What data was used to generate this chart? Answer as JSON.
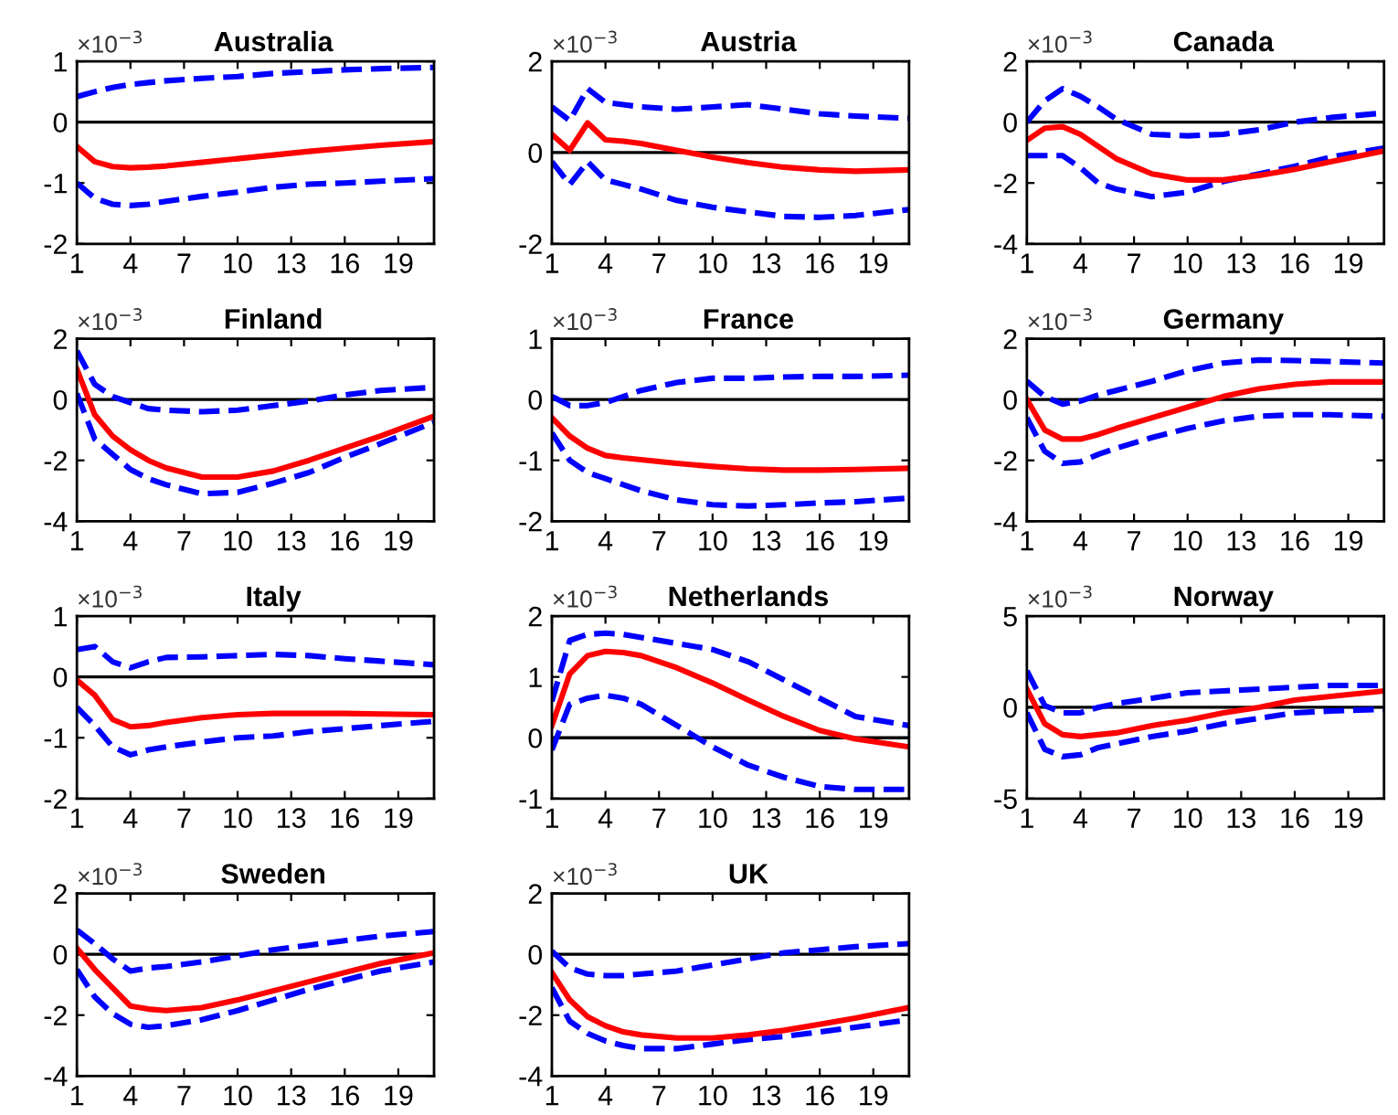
{
  "chart_data": [
    {
      "type": "line",
      "title": "Australia",
      "annotations": [
        "×10$^{−3}$"
      ],
      "x": [
        1,
        2,
        3,
        4,
        5,
        6,
        8,
        10,
        12,
        14,
        16,
        18,
        21
      ],
      "xlim": [
        1,
        21
      ],
      "xticks": [
        1,
        4,
        7,
        10,
        13,
        16,
        19
      ],
      "ylim": [
        -2,
        1
      ],
      "yticks": [
        -2,
        -1,
        0,
        1
      ],
      "ref_lines": [
        {
          "axis": "y",
          "value": 0,
          "color": "#000000"
        }
      ],
      "series": [
        {
          "color": "#0000ff",
          "line_style": "dashed",
          "values": [
            0.42,
            0.5,
            0.57,
            0.62,
            0.65,
            0.68,
            0.72,
            0.75,
            0.8,
            0.83,
            0.86,
            0.88,
            0.9
          ]
        },
        {
          "color": "#0000ff",
          "line_style": "dashed",
          "values": [
            -1.0,
            -1.25,
            -1.35,
            -1.37,
            -1.35,
            -1.3,
            -1.22,
            -1.15,
            -1.07,
            -1.02,
            -1.0,
            -0.97,
            -0.93
          ]
        },
        {
          "color": "#ff0000",
          "line_style": "solid",
          "values": [
            -0.4,
            -0.65,
            -0.73,
            -0.75,
            -0.74,
            -0.72,
            -0.66,
            -0.6,
            -0.54,
            -0.48,
            -0.43,
            -0.38,
            -0.32
          ]
        }
      ]
    },
    {
      "type": "line",
      "title": "Austria",
      "annotations": [
        "×10$^{−3}$"
      ],
      "x": [
        1,
        2,
        3,
        4,
        5,
        6,
        8,
        10,
        12,
        14,
        16,
        18,
        21
      ],
      "xlim": [
        1,
        21
      ],
      "xticks": [
        1,
        4,
        7,
        10,
        13,
        16,
        19
      ],
      "ylim": [
        -2,
        2
      ],
      "yticks": [
        -2,
        0,
        2
      ],
      "ref_lines": [
        {
          "axis": "y",
          "value": 0,
          "color": "#000000"
        }
      ],
      "series": [
        {
          "color": "#0000ff",
          "line_style": "dashed",
          "values": [
            1.0,
            0.7,
            1.4,
            1.1,
            1.05,
            1.0,
            0.95,
            1.0,
            1.05,
            0.95,
            0.85,
            0.8,
            0.75
          ]
        },
        {
          "color": "#0000ff",
          "line_style": "dashed",
          "values": [
            -0.2,
            -0.7,
            -0.2,
            -0.6,
            -0.7,
            -0.8,
            -1.05,
            -1.2,
            -1.3,
            -1.4,
            -1.42,
            -1.38,
            -1.25
          ]
        },
        {
          "color": "#ff0000",
          "line_style": "solid",
          "values": [
            0.4,
            0.05,
            0.65,
            0.28,
            0.25,
            0.2,
            0.05,
            -0.1,
            -0.22,
            -0.32,
            -0.38,
            -0.41,
            -0.38
          ]
        }
      ]
    },
    {
      "type": "line",
      "title": "Canada",
      "annotations": [
        "×10$^{−3}$"
      ],
      "x": [
        1,
        2,
        3,
        4,
        5,
        6,
        8,
        10,
        12,
        14,
        16,
        18,
        21
      ],
      "xlim": [
        1,
        21
      ],
      "xticks": [
        1,
        4,
        7,
        10,
        13,
        16,
        19
      ],
      "ylim": [
        -4,
        2
      ],
      "yticks": [
        -4,
        -2,
        0,
        2
      ],
      "ref_lines": [
        {
          "axis": "y",
          "value": 0,
          "color": "#000000"
        }
      ],
      "series": [
        {
          "color": "#0000ff",
          "line_style": "dashed",
          "values": [
            0.0,
            0.7,
            1.1,
            0.85,
            0.5,
            0.1,
            -0.4,
            -0.45,
            -0.4,
            -0.25,
            0.0,
            0.15,
            0.3
          ]
        },
        {
          "color": "#0000ff",
          "line_style": "dashed",
          "values": [
            -1.1,
            -1.1,
            -1.1,
            -1.5,
            -2.0,
            -2.2,
            -2.45,
            -2.3,
            -1.95,
            -1.7,
            -1.45,
            -1.15,
            -0.85
          ]
        },
        {
          "color": "#ff0000",
          "line_style": "solid",
          "values": [
            -0.6,
            -0.2,
            -0.15,
            -0.4,
            -0.8,
            -1.2,
            -1.7,
            -1.9,
            -1.9,
            -1.75,
            -1.55,
            -1.3,
            -0.95
          ]
        }
      ]
    },
    {
      "type": "line",
      "title": "Finland",
      "annotations": [
        "×10$^{−3}$"
      ],
      "x": [
        1,
        2,
        3,
        4,
        5,
        6,
        8,
        10,
        12,
        14,
        16,
        18,
        21
      ],
      "xlim": [
        1,
        21
      ],
      "xticks": [
        1,
        4,
        7,
        10,
        13,
        16,
        19
      ],
      "ylim": [
        -4,
        2
      ],
      "yticks": [
        -4,
        -2,
        0,
        2
      ],
      "ref_lines": [
        {
          "axis": "y",
          "value": 0,
          "color": "#000000"
        }
      ],
      "series": [
        {
          "color": "#0000ff",
          "line_style": "dashed",
          "values": [
            1.6,
            0.5,
            0.1,
            -0.1,
            -0.3,
            -0.35,
            -0.4,
            -0.35,
            -0.2,
            -0.05,
            0.15,
            0.3,
            0.4
          ]
        },
        {
          "color": "#0000ff",
          "line_style": "dashed",
          "values": [
            0.2,
            -1.3,
            -1.8,
            -2.3,
            -2.6,
            -2.8,
            -3.1,
            -3.05,
            -2.75,
            -2.4,
            -1.9,
            -1.45,
            -0.75
          ]
        },
        {
          "color": "#ff0000",
          "line_style": "solid",
          "values": [
            1.0,
            -0.5,
            -1.2,
            -1.65,
            -2.0,
            -2.25,
            -2.55,
            -2.55,
            -2.35,
            -2.0,
            -1.6,
            -1.2,
            -0.55
          ]
        }
      ]
    },
    {
      "type": "line",
      "title": "France",
      "annotations": [
        "×10$^{−3}$"
      ],
      "x": [
        1,
        2,
        3,
        4,
        5,
        6,
        8,
        10,
        12,
        14,
        16,
        18,
        21
      ],
      "xlim": [
        1,
        21
      ],
      "xticks": [
        1,
        4,
        7,
        10,
        13,
        16,
        19
      ],
      "ylim": [
        -2,
        1
      ],
      "yticks": [
        -2,
        -1,
        0,
        1
      ],
      "ref_lines": [
        {
          "axis": "y",
          "value": 0,
          "color": "#000000"
        }
      ],
      "series": [
        {
          "color": "#0000ff",
          "line_style": "dashed",
          "values": [
            0.05,
            -0.1,
            -0.1,
            -0.05,
            0.05,
            0.15,
            0.28,
            0.35,
            0.35,
            0.37,
            0.38,
            0.38,
            0.4
          ]
        },
        {
          "color": "#0000ff",
          "line_style": "dashed",
          "values": [
            -0.55,
            -1.0,
            -1.2,
            -1.3,
            -1.4,
            -1.5,
            -1.65,
            -1.73,
            -1.75,
            -1.73,
            -1.7,
            -1.68,
            -1.62
          ]
        },
        {
          "color": "#ff0000",
          "line_style": "solid",
          "values": [
            -0.3,
            -0.6,
            -0.8,
            -0.92,
            -0.96,
            -0.99,
            -1.05,
            -1.1,
            -1.14,
            -1.16,
            -1.16,
            -1.15,
            -1.13
          ]
        }
      ]
    },
    {
      "type": "line",
      "title": "Germany",
      "annotations": [
        "×10$^{−3}$"
      ],
      "x": [
        1,
        2,
        3,
        4,
        5,
        6,
        8,
        10,
        12,
        14,
        16,
        18,
        21
      ],
      "xlim": [
        1,
        21
      ],
      "xticks": [
        1,
        4,
        7,
        10,
        13,
        16,
        19
      ],
      "ylim": [
        -4,
        2
      ],
      "yticks": [
        -4,
        -2,
        0,
        2
      ],
      "ref_lines": [
        {
          "axis": "y",
          "value": 0,
          "color": "#000000"
        }
      ],
      "series": [
        {
          "color": "#0000ff",
          "line_style": "dashed",
          "values": [
            0.6,
            0.1,
            -0.15,
            -0.05,
            0.15,
            0.3,
            0.6,
            0.95,
            1.2,
            1.3,
            1.28,
            1.25,
            1.2
          ]
        },
        {
          "color": "#0000ff",
          "line_style": "dashed",
          "values": [
            -0.6,
            -1.7,
            -2.1,
            -2.05,
            -1.8,
            -1.6,
            -1.25,
            -0.95,
            -0.7,
            -0.55,
            -0.5,
            -0.5,
            -0.55
          ]
        },
        {
          "color": "#ff0000",
          "line_style": "solid",
          "values": [
            0.0,
            -1.0,
            -1.3,
            -1.3,
            -1.15,
            -0.95,
            -0.6,
            -0.25,
            0.1,
            0.35,
            0.5,
            0.58,
            0.58
          ]
        }
      ]
    },
    {
      "type": "line",
      "title": "Italy",
      "annotations": [
        "×10$^{−3}$"
      ],
      "x": [
        1,
        2,
        3,
        4,
        5,
        6,
        8,
        10,
        12,
        14,
        16,
        18,
        21
      ],
      "xlim": [
        1,
        21
      ],
      "xticks": [
        1,
        4,
        7,
        10,
        13,
        16,
        19
      ],
      "ylim": [
        -2,
        1
      ],
      "yticks": [
        -2,
        -1,
        0,
        1
      ],
      "ref_lines": [
        {
          "axis": "y",
          "value": 0,
          "color": "#000000"
        }
      ],
      "series": [
        {
          "color": "#0000ff",
          "line_style": "dashed",
          "values": [
            0.45,
            0.5,
            0.25,
            0.15,
            0.25,
            0.32,
            0.33,
            0.35,
            0.37,
            0.35,
            0.3,
            0.26,
            0.2
          ]
        },
        {
          "color": "#0000ff",
          "line_style": "dashed",
          "values": [
            -0.5,
            -0.8,
            -1.15,
            -1.28,
            -1.2,
            -1.15,
            -1.07,
            -1.0,
            -0.97,
            -0.9,
            -0.85,
            -0.8,
            -0.73
          ]
        },
        {
          "color": "#ff0000",
          "line_style": "solid",
          "values": [
            -0.05,
            -0.3,
            -0.7,
            -0.82,
            -0.8,
            -0.75,
            -0.67,
            -0.62,
            -0.6,
            -0.6,
            -0.6,
            -0.61,
            -0.62
          ]
        }
      ]
    },
    {
      "type": "line",
      "title": "Netherlands",
      "annotations": [
        "×10$^{−3}$"
      ],
      "x": [
        1,
        2,
        3,
        4,
        5,
        6,
        8,
        10,
        12,
        14,
        16,
        18,
        21
      ],
      "xlim": [
        1,
        21
      ],
      "xticks": [
        1,
        4,
        7,
        10,
        13,
        16,
        19
      ],
      "ylim": [
        -1,
        2
      ],
      "yticks": [
        -1,
        0,
        1,
        2
      ],
      "ref_lines": [
        {
          "axis": "y",
          "value": 0,
          "color": "#000000"
        }
      ],
      "series": [
        {
          "color": "#0000ff",
          "line_style": "dashed",
          "values": [
            0.6,
            1.6,
            1.7,
            1.72,
            1.7,
            1.65,
            1.55,
            1.45,
            1.25,
            0.95,
            0.65,
            0.35,
            0.2
          ]
        },
        {
          "color": "#0000ff",
          "line_style": "dashed",
          "values": [
            -0.2,
            0.55,
            0.65,
            0.7,
            0.65,
            0.55,
            0.2,
            -0.15,
            -0.45,
            -0.65,
            -0.8,
            -0.85,
            -0.85
          ]
        },
        {
          "color": "#ff0000",
          "line_style": "solid",
          "values": [
            0.2,
            1.05,
            1.35,
            1.42,
            1.4,
            1.35,
            1.15,
            0.9,
            0.62,
            0.35,
            0.12,
            -0.02,
            -0.15
          ]
        }
      ]
    },
    {
      "type": "line",
      "title": "Norway",
      "annotations": [
        "×10$^{−3}$"
      ],
      "x": [
        1,
        2,
        3,
        4,
        5,
        6,
        8,
        10,
        12,
        14,
        16,
        18,
        21
      ],
      "xlim": [
        1,
        21
      ],
      "xticks": [
        1,
        4,
        7,
        10,
        13,
        16,
        19
      ],
      "ylim": [
        -5,
        5
      ],
      "yticks": [
        -5,
        0,
        5
      ],
      "ref_lines": [
        {
          "axis": "y",
          "value": 0,
          "color": "#000000"
        }
      ],
      "series": [
        {
          "color": "#0000ff",
          "line_style": "dashed",
          "values": [
            2.0,
            0.1,
            -0.3,
            -0.3,
            0.0,
            0.2,
            0.5,
            0.8,
            0.9,
            1.0,
            1.1,
            1.2,
            1.2
          ]
        },
        {
          "color": "#0000ff",
          "line_style": "dashed",
          "values": [
            -0.3,
            -2.3,
            -2.7,
            -2.6,
            -2.2,
            -2.0,
            -1.6,
            -1.3,
            -0.9,
            -0.6,
            -0.3,
            -0.2,
            -0.1
          ]
        },
        {
          "color": "#ff0000",
          "line_style": "solid",
          "values": [
            1.0,
            -0.9,
            -1.5,
            -1.6,
            -1.5,
            -1.4,
            -1.0,
            -0.7,
            -0.3,
            0.0,
            0.4,
            0.6,
            0.9
          ]
        }
      ]
    },
    {
      "type": "line",
      "title": "Sweden",
      "annotations": [
        "×10$^{−3}$"
      ],
      "x": [
        1,
        2,
        3,
        4,
        5,
        6,
        8,
        10,
        12,
        14,
        16,
        18,
        21
      ],
      "xlim": [
        1,
        21
      ],
      "xticks": [
        1,
        4,
        7,
        10,
        13,
        16,
        19
      ],
      "ylim": [
        -4,
        2
      ],
      "yticks": [
        -4,
        -2,
        0,
        2
      ],
      "ref_lines": [
        {
          "axis": "y",
          "value": 0,
          "color": "#000000"
        }
      ],
      "series": [
        {
          "color": "#0000ff",
          "line_style": "dashed",
          "values": [
            0.8,
            0.35,
            -0.15,
            -0.55,
            -0.45,
            -0.4,
            -0.25,
            -0.05,
            0.15,
            0.3,
            0.45,
            0.6,
            0.75
          ]
        },
        {
          "color": "#0000ff",
          "line_style": "dashed",
          "values": [
            -0.5,
            -1.4,
            -1.95,
            -2.3,
            -2.4,
            -2.35,
            -2.15,
            -1.85,
            -1.5,
            -1.15,
            -0.85,
            -0.55,
            -0.25
          ]
        },
        {
          "color": "#ff0000",
          "line_style": "solid",
          "values": [
            0.2,
            -0.5,
            -1.1,
            -1.7,
            -1.8,
            -1.85,
            -1.75,
            -1.5,
            -1.2,
            -0.9,
            -0.6,
            -0.3,
            0.05
          ]
        }
      ]
    },
    {
      "type": "line",
      "title": "UK",
      "annotations": [
        "×10$^{−3}$"
      ],
      "x": [
        1,
        2,
        3,
        4,
        5,
        6,
        8,
        10,
        12,
        14,
        16,
        18,
        21
      ],
      "xlim": [
        1,
        21
      ],
      "xticks": [
        1,
        4,
        7,
        10,
        13,
        16,
        19
      ],
      "ylim": [
        -4,
        2
      ],
      "yticks": [
        -4,
        -2,
        0,
        2
      ],
      "ref_lines": [
        {
          "axis": "y",
          "value": 0,
          "color": "#000000"
        }
      ],
      "series": [
        {
          "color": "#0000ff",
          "line_style": "dashed",
          "values": [
            0.1,
            -0.45,
            -0.65,
            -0.7,
            -0.7,
            -0.65,
            -0.55,
            -0.35,
            -0.15,
            0.05,
            0.15,
            0.25,
            0.35
          ]
        },
        {
          "color": "#0000ff",
          "line_style": "dashed",
          "values": [
            -1.1,
            -2.2,
            -2.6,
            -2.85,
            -3.0,
            -3.1,
            -3.1,
            -2.95,
            -2.8,
            -2.7,
            -2.55,
            -2.4,
            -2.15
          ]
        },
        {
          "color": "#ff0000",
          "line_style": "solid",
          "values": [
            -0.6,
            -1.5,
            -2.05,
            -2.35,
            -2.55,
            -2.65,
            -2.75,
            -2.75,
            -2.65,
            -2.5,
            -2.3,
            -2.1,
            -1.75
          ]
        }
      ]
    }
  ]
}
